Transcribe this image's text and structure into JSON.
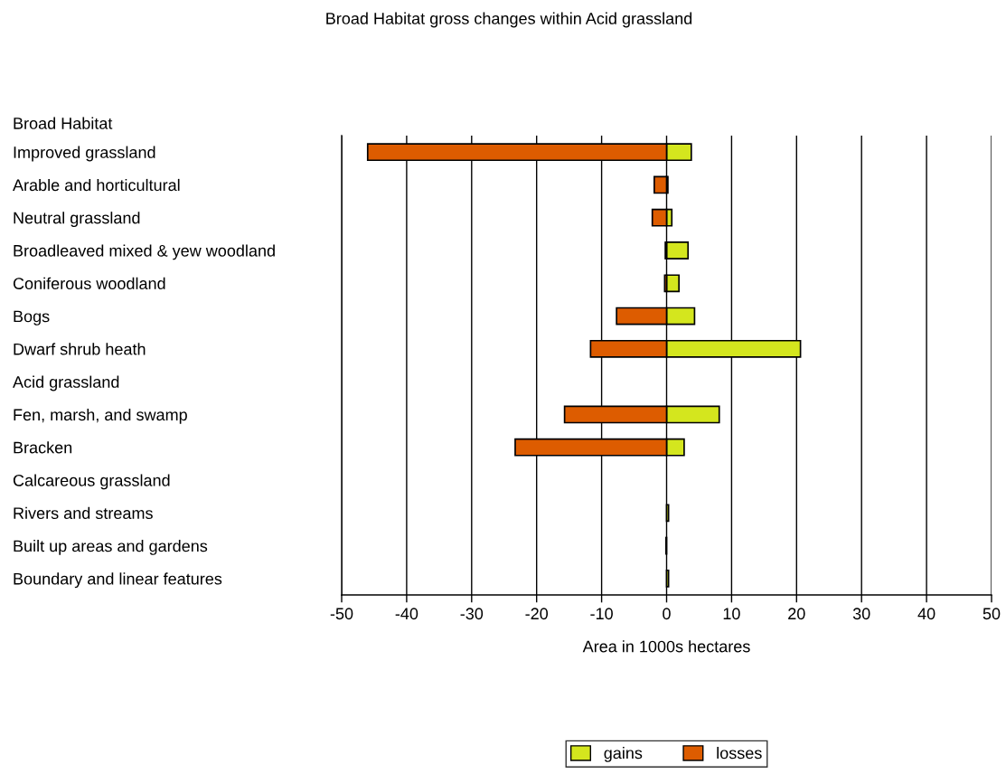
{
  "chart_data": {
    "type": "bar",
    "orientation": "horizontal",
    "stacked": true,
    "title": "Broad Habitat gross changes within Acid grassland",
    "xlabel": "Area in 1000s hectares",
    "ylabel": "Broad Habitat",
    "categories": [
      "Improved grassland",
      "Arable and horticultural",
      "Neutral grassland",
      "Broadleaved mixed & yew woodland",
      "Coniferous woodland",
      "Bogs",
      "Dwarf shrub heath",
      "Acid grassland",
      "Fen, marsh, and swamp",
      "Bracken",
      "Calcareous grassland",
      "Rivers and streams",
      "Built up areas and gardens",
      "Boundary and linear features"
    ],
    "series": [
      {
        "name": "gains",
        "color": "#d4e61e",
        "values": [
          3.8,
          0.2,
          0.8,
          3.3,
          1.9,
          4.3,
          20.6,
          null,
          8.1,
          2.7,
          null,
          0.3,
          null,
          0.3
        ]
      },
      {
        "name": "losses",
        "color": "#dd5c00",
        "values": [
          -46,
          -1.9,
          -2.2,
          -0.2,
          -0.3,
          -7.7,
          -11.7,
          null,
          -15.7,
          -23.3,
          null,
          null,
          -0.1,
          null
        ]
      }
    ],
    "xlim": [
      -50,
      50
    ],
    "xticks": [
      -50,
      -40,
      -30,
      -20,
      -10,
      0,
      10,
      20,
      30,
      40,
      50
    ],
    "grid": "x",
    "legend": "bottom"
  }
}
